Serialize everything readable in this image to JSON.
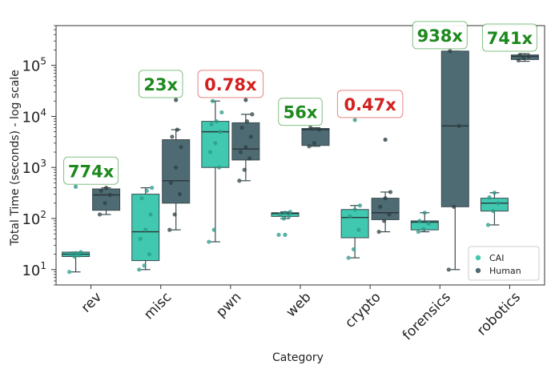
{
  "chart_data": {
    "type": "box",
    "title": "",
    "xlabel": "Category",
    "ylabel": "Total Time (seconds) - log scale",
    "yscale": "log",
    "ylim": [
      5,
      600000
    ],
    "y_ticks": [
      {
        "value": 10,
        "base": "10",
        "exp": "1"
      },
      {
        "value": 100,
        "base": "10",
        "exp": "2"
      },
      {
        "value": 1000,
        "base": "10",
        "exp": "3"
      },
      {
        "value": 10000,
        "base": "10",
        "exp": "4"
      },
      {
        "value": 100000,
        "base": "10",
        "exp": "5"
      }
    ],
    "grid": false,
    "legend_position": "bottom-right",
    "legend": [
      {
        "name": "CAI",
        "color": "#40c9b0"
      },
      {
        "name": "Human",
        "color": "#4e6b73"
      }
    ],
    "colors": {
      "cai": "#40c9b0",
      "human": "#4e6b73",
      "ann_green": "#1e8a1e",
      "ann_red": "#d32020"
    },
    "categories": [
      "rev",
      "misc",
      "pwn",
      "web",
      "crypto",
      "forensics",
      "robotics"
    ],
    "series": [
      {
        "name": "CAI",
        "boxes": [
          {
            "whislo": 9,
            "q1": 18,
            "med": 20,
            "q3": 22,
            "whishi": 22,
            "fliers": [
              420
            ],
            "points": [
              9,
              18,
              19,
              20,
              21,
              22
            ]
          },
          {
            "whislo": 10,
            "q1": 15,
            "med": 55,
            "q3": 300,
            "whishi": 400,
            "fliers": [],
            "points": [
              10,
              12,
              20,
              40,
              60,
              120,
              250,
              350,
              400
            ]
          },
          {
            "whislo": 35,
            "q1": 1000,
            "med": 5000,
            "q3": 8000,
            "whishi": 20000,
            "fliers": [],
            "points": [
              35,
              60,
              1000,
              2000,
              3000,
              5000,
              7000,
              8000,
              12000,
              20000
            ]
          },
          {
            "whislo": 100,
            "q1": 110,
            "med": 125,
            "q3": 130,
            "whishi": 135,
            "fliers": [
              48
            ],
            "points": [
              48,
              100,
              110,
              120,
              130,
              135
            ]
          },
          {
            "whislo": 17,
            "q1": 42,
            "med": 105,
            "q3": 150,
            "whishi": 180,
            "fliers": [
              8500
            ],
            "points": [
              17,
              25,
              60,
              110,
              150,
              180
            ]
          },
          {
            "whislo": 55,
            "q1": 60,
            "med": 85,
            "q3": 90,
            "whishi": 130,
            "fliers": [],
            "points": [
              55,
              62,
              80,
              90,
              130
            ]
          },
          {
            "whislo": 75,
            "q1": 140,
            "med": 200,
            "q3": 250,
            "whishi": 320,
            "fliers": [],
            "points": [
              75,
              140,
              200,
              260,
              320
            ]
          }
        ]
      },
      {
        "name": "Human",
        "boxes": [
          {
            "whislo": 120,
            "q1": 145,
            "med": 290,
            "q3": 380,
            "whishi": 400,
            "fliers": [],
            "points": [
              120,
              200,
              290,
              350,
              400
            ]
          },
          {
            "whislo": 60,
            "q1": 200,
            "med": 550,
            "q3": 3500,
            "whishi": 5500,
            "fliers": [
              21000
            ],
            "points": [
              60,
              120,
              300,
              500,
              1000,
              2500,
              4000,
              5500
            ]
          },
          {
            "whislo": 550,
            "q1": 1400,
            "med": 2300,
            "q3": 7500,
            "whishi": 11000,
            "fliers": [
              21000
            ],
            "points": [
              550,
              900,
              1500,
              2000,
              2500,
              4000,
              6000,
              8000,
              11000
            ]
          },
          {
            "whislo": 2600,
            "q1": 2700,
            "med": 5500,
            "q3": 5800,
            "whishi": 6000,
            "fliers": [],
            "points": [
              2600,
              3000,
              5500,
              6000
            ]
          },
          {
            "whislo": 55,
            "q1": 95,
            "med": 130,
            "q3": 250,
            "whishi": 330,
            "fliers": [
              3500
            ],
            "points": [
              55,
              90,
              120,
              170,
              250,
              330
            ]
          },
          {
            "whislo": 10,
            "q1": 170,
            "med": 6500,
            "q3": 190000,
            "whishi": 190000,
            "fliers": [],
            "points": [
              10,
              170,
              6500,
              190000
            ]
          },
          {
            "whislo": 120000,
            "q1": 130000,
            "med": 150000,
            "q3": 160000,
            "whishi": 170000,
            "fliers": [],
            "points": [
              125000,
              140000,
              150000,
              160000
            ]
          }
        ]
      }
    ],
    "annotations": [
      {
        "category": "rev",
        "text": "774x",
        "color": "green"
      },
      {
        "category": "misc",
        "text": "23x",
        "color": "green"
      },
      {
        "category": "pwn",
        "text": "0.78x",
        "color": "red"
      },
      {
        "category": "web",
        "text": "56x",
        "color": "green"
      },
      {
        "category": "crypto",
        "text": "0.47x",
        "color": "red"
      },
      {
        "category": "forensics",
        "text": "938x",
        "color": "green"
      },
      {
        "category": "robotics",
        "text": "741x",
        "color": "green"
      }
    ]
  }
}
